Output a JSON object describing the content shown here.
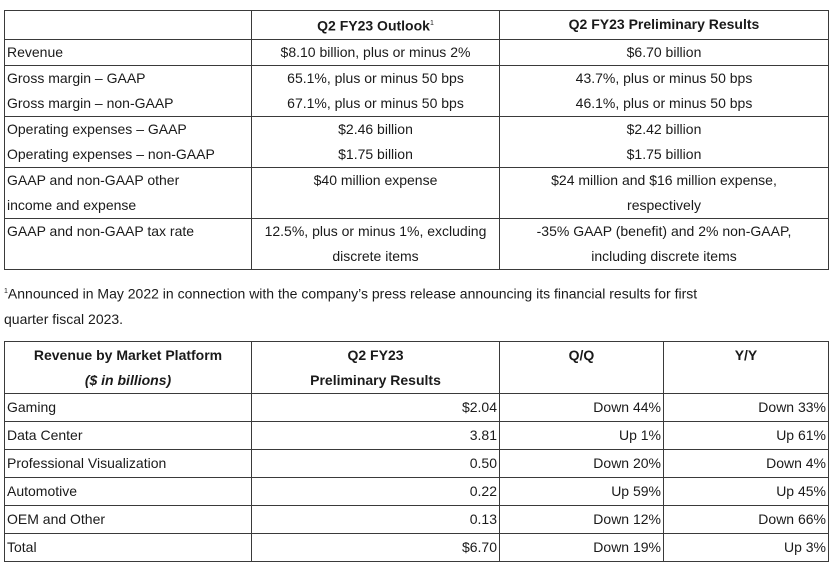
{
  "outlook_table": {
    "headers": [
      "",
      "Q2 FY23 Outlook",
      "Q2 FY23 Preliminary Results"
    ],
    "header_footnote_mark": "1",
    "rows": [
      {
        "labels": [
          "Revenue"
        ],
        "outlook": [
          "$8.10 billion, plus or minus 2%"
        ],
        "results": [
          "$6.70 billion"
        ]
      },
      {
        "labels": [
          "Gross margin – GAAP",
          "Gross margin – non-GAAP"
        ],
        "outlook": [
          "65.1%, plus or minus 50 bps",
          "67.1%, plus or minus 50 bps"
        ],
        "results": [
          "43.7%, plus or minus 50 bps",
          "46.1%, plus or minus 50 bps"
        ]
      },
      {
        "labels": [
          "Operating expenses – GAAP",
          "Operating expenses – non-GAAP"
        ],
        "outlook": [
          "$2.46 billion",
          "$1.75 billion"
        ],
        "results": [
          "$2.42 billion",
          "$1.75 billion"
        ]
      },
      {
        "labels": [
          "GAAP and non-GAAP other",
          "income and expense"
        ],
        "outlook": [
          "$40 million expense"
        ],
        "results": [
          "$24 million and $16 million expense,",
          "respectively"
        ]
      },
      {
        "labels": [
          "GAAP and non-GAAP tax rate"
        ],
        "outlook": [
          "12.5%, plus or minus 1%, excluding",
          "discrete items"
        ],
        "results": [
          "-35% GAAP (benefit) and 2% non-GAAP,",
          "including discrete items"
        ]
      }
    ]
  },
  "footnote": {
    "mark": "1",
    "line1": "Announced in May 2022 in connection with the company’s press release announcing its financial results for first",
    "line2": "quarter fiscal 2023."
  },
  "platform_table": {
    "header_col1_line1": "Revenue by Market Platform",
    "header_col1_line2": "($ in billions)",
    "header_col2_line1": "Q2 FY23",
    "header_col2_line2": "Preliminary Results",
    "header_col3": "Q/Q",
    "header_col4": "Y/Y",
    "rows": [
      {
        "platform": "Gaming",
        "results": "$2.04",
        "qq": "Down 44%",
        "yy": "Down 33%"
      },
      {
        "platform": "Data Center",
        "results": "3.81",
        "qq": "Up 1%",
        "yy": "Up 61%"
      },
      {
        "platform": "Professional Visualization",
        "results": "0.50",
        "qq": "Down 20%",
        "yy": "Down 4%"
      },
      {
        "platform": "Automotive",
        "results": "0.22",
        "qq": "Up 59%",
        "yy": "Up 45%"
      },
      {
        "platform": "OEM and Other",
        "results": "0.13",
        "qq": "Down 12%",
        "yy": "Down 66%"
      },
      {
        "platform": "Total",
        "results": "$6.70",
        "qq": "Down 19%",
        "yy": "Up 3%"
      }
    ]
  }
}
